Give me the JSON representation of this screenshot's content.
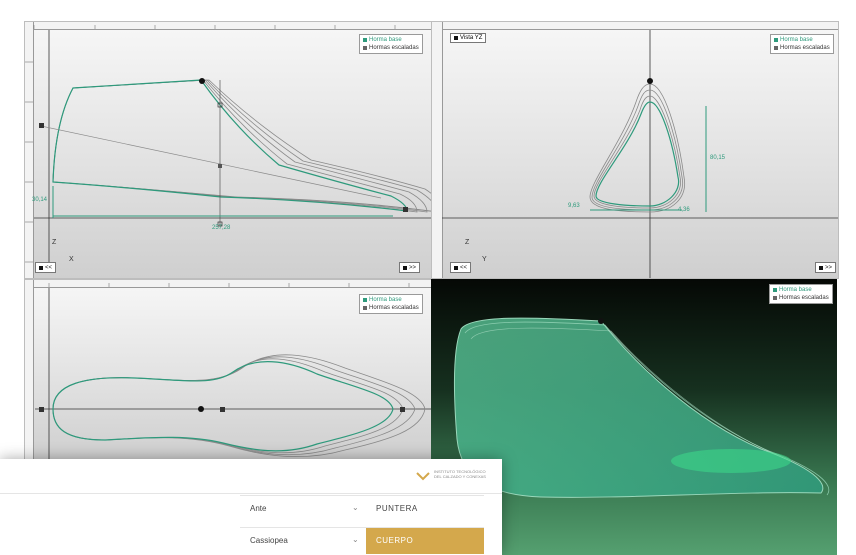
{
  "legend": {
    "base": "Horma base",
    "scaled": "Hormas escaladas"
  },
  "colors": {
    "base": "#2e9a7c",
    "scaled": "#666666",
    "accent": "#d4a84c"
  },
  "nav": {
    "prev": "<<",
    "next": ">>"
  },
  "side_view": {
    "dims": {
      "height": "30,14",
      "length": "257,28"
    },
    "axes": {
      "vertical": "Z",
      "horizontal": "X"
    },
    "ticks": [
      "0",
      "5",
      "10",
      "15",
      "20",
      "25",
      "30"
    ]
  },
  "front_view": {
    "title": "Vista YZ",
    "dims": {
      "height": "80,15",
      "left": "9,63",
      "right": "4,36"
    },
    "axes": {
      "vertical": "Z",
      "horizontal": "Y"
    },
    "ticks": [
      "10",
      "5",
      "0",
      "-5"
    ]
  },
  "top_view": {
    "ticks": [
      "0",
      "5",
      "10",
      "15",
      "20",
      "25",
      "30"
    ]
  },
  "logo": {
    "text": "INSTITUTO TECNOLÓGICO DEL CALZADO Y CONEXAS"
  },
  "table": {
    "rows": [
      {
        "material": "Ante",
        "part": "PUNTERA"
      },
      {
        "material": "Cassiopea",
        "part": "CUERPO"
      }
    ]
  }
}
